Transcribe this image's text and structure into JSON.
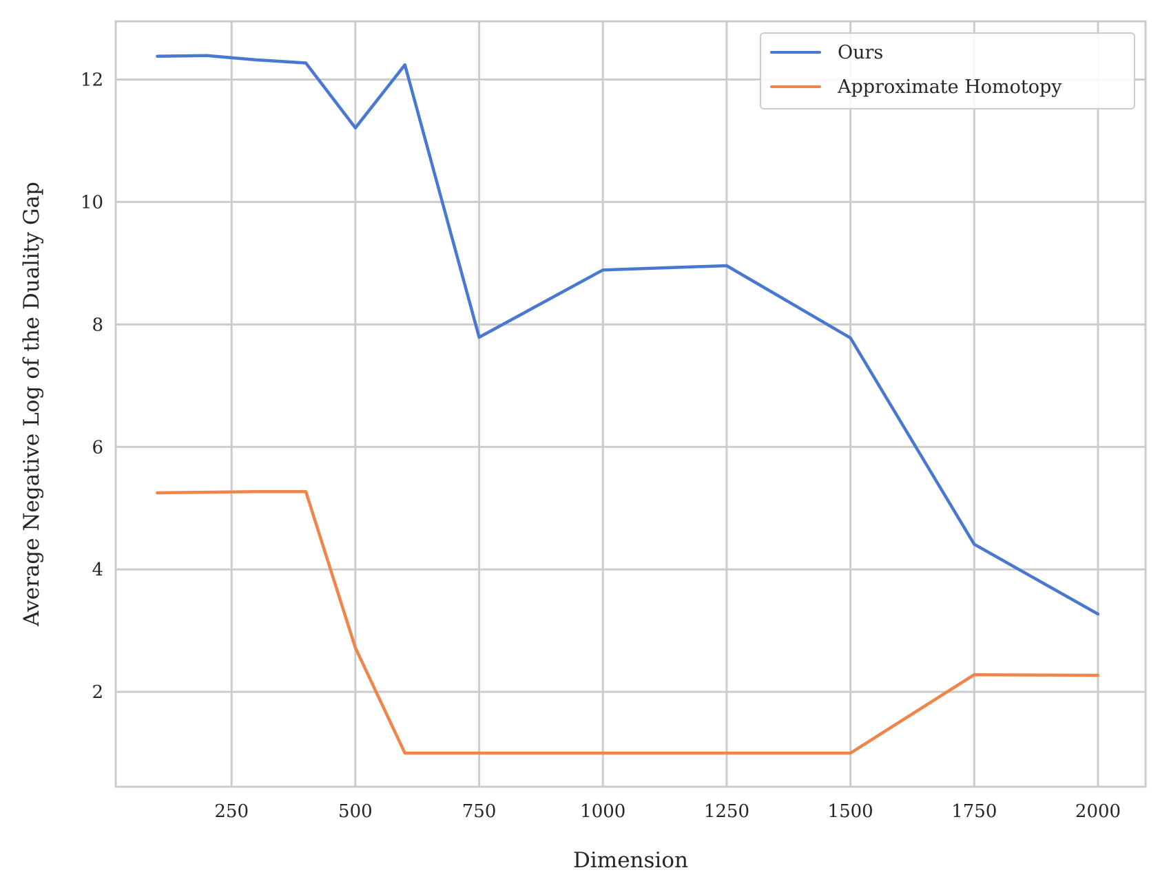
{
  "chart_data": {
    "type": "line",
    "title": "",
    "xlabel": "Dimension",
    "ylabel": "Average Negative Log of the Duality Gap",
    "xlim": [
      16,
      2096
    ],
    "ylim": [
      0.45,
      12.95
    ],
    "xticks": [
      250,
      500,
      750,
      1000,
      1250,
      1500,
      1750,
      2000
    ],
    "yticks": [
      2,
      4,
      6,
      8,
      10,
      12
    ],
    "grid": true,
    "legend_position": "top-right",
    "series": [
      {
        "name": "Ours",
        "color": "#4878d0",
        "x": [
          100,
          200,
          300,
          400,
          500,
          600,
          750,
          1000,
          1250,
          1500,
          1750,
          2000
        ],
        "y": [
          12.38,
          12.39,
          12.32,
          12.27,
          11.21,
          12.24,
          7.79,
          8.89,
          8.96,
          7.78,
          4.41,
          3.27
        ]
      },
      {
        "name": "Approximate Homotopy",
        "color": "#ee854a",
        "x": [
          100,
          200,
          300,
          400,
          500,
          600,
          750,
          1000,
          1250,
          1500,
          1750,
          2000
        ],
        "y": [
          5.25,
          5.26,
          5.27,
          5.27,
          2.72,
          1.0,
          1.0,
          1.0,
          1.0,
          1.0,
          2.28,
          2.27
        ]
      }
    ]
  }
}
